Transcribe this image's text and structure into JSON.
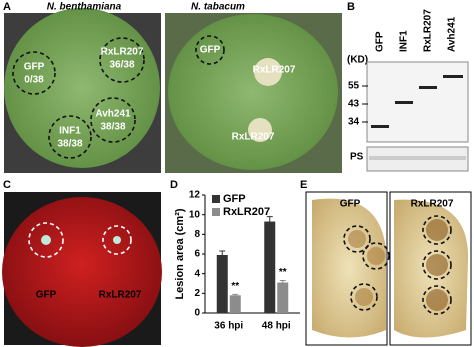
{
  "panels": {
    "A": {
      "label": "A",
      "left_title": "N. benthamiana",
      "right_title": "N. tabacum",
      "left_spots": [
        {
          "name": "GFP",
          "score": "0/38"
        },
        {
          "name": "RxLR207",
          "score": "36/38"
        },
        {
          "name": "INF1",
          "score": "38/38"
        },
        {
          "name": "Avh241",
          "score": "38/38"
        }
      ],
      "right_spots": [
        "GFP",
        "RxLR207",
        "RxLR207"
      ]
    },
    "B": {
      "label": "B",
      "lanes": [
        "GFP",
        "INF1",
        "RxLR207",
        "Avh241"
      ],
      "unit_label": "(KD)",
      "markers": [
        "55",
        "43",
        "34"
      ],
      "ps_label": "PS"
    },
    "C": {
      "label": "C",
      "spots": [
        "GFP",
        "RxLR207"
      ]
    },
    "D": {
      "label": "D"
    },
    "E": {
      "label": "E",
      "titles": [
        "GFP",
        "RxLR207"
      ]
    }
  },
  "chart_data": {
    "type": "bar",
    "y_label": "Lesion area (cm²)",
    "categories": [
      "36 hpi",
      "48 hpi"
    ],
    "series": [
      {
        "name": "GFP",
        "color": "#333333",
        "values": [
          5.9,
          9.3
        ],
        "errors": [
          0.4,
          0.5
        ]
      },
      {
        "name": "RxLR207",
        "color": "#8c8c8c",
        "values": [
          1.8,
          3.1
        ],
        "errors": [
          0.1,
          0.2
        ],
        "value_labels": [
          "**",
          "**"
        ]
      }
    ],
    "ylim": [
      0,
      12
    ],
    "yticks": [
      0,
      2,
      4,
      6,
      8,
      10,
      12
    ]
  }
}
